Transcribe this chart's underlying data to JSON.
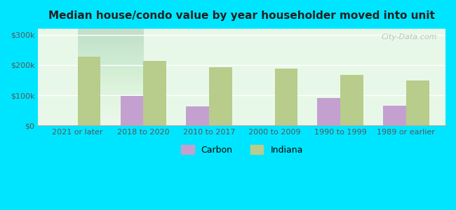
{
  "title": "Median house/condo value by year householder moved into unit",
  "categories": [
    "2021 or later",
    "2018 to 2020",
    "2010 to 2017",
    "2000 to 2009",
    "1990 to 1999",
    "1989 or earlier"
  ],
  "carbon_values": [
    0,
    98000,
    63000,
    0,
    92000,
    65000
  ],
  "indiana_values": [
    228000,
    213000,
    193000,
    188000,
    168000,
    148000
  ],
  "carbon_color": "#c4a0d0",
  "indiana_color": "#b8cc8c",
  "bg_color": "#e8f8e8",
  "plot_bg_gradient_top": "#e0f0e0",
  "plot_bg_gradient_bottom": "#f0f8f0",
  "ylabel_ticks": [
    0,
    100000,
    200000,
    300000
  ],
  "ylabel_labels": [
    "$0",
    "$100k",
    "$200k",
    "$300k"
  ],
  "ylim": [
    0,
    320000
  ],
  "bar_width": 0.35,
  "outer_bg": "#00e5ff",
  "watermark": "City-Data.com",
  "legend_carbon": "Carbon",
  "legend_indiana": "Indiana"
}
